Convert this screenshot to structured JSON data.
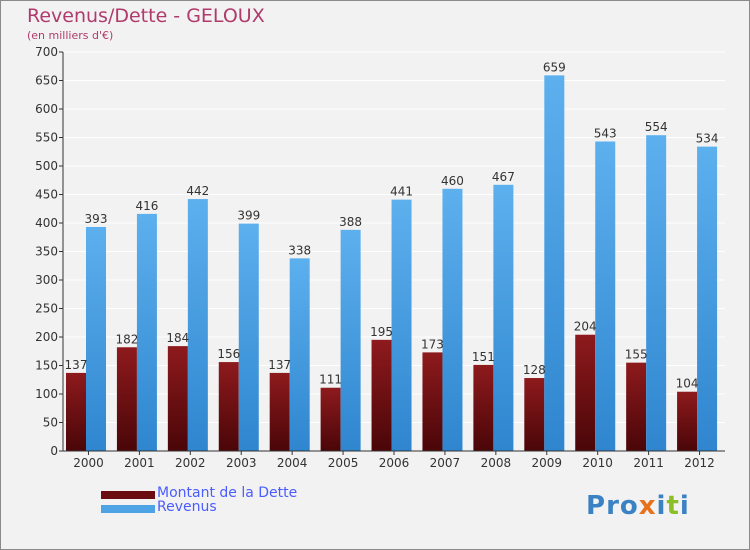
{
  "title": "Revenus/Dette - GELOUX",
  "subtitle": "(en milliers d'€)",
  "legend": {
    "debt_label": "Montant de la Dette",
    "revenue_label": "Revenus"
  },
  "logo": {
    "text": "Proxiti",
    "letters": [
      "P",
      "r",
      "o",
      "x",
      "i",
      "t",
      "i"
    ],
    "colors": [
      "#3b82c4",
      "#3b82c4",
      "#3b82c4",
      "#e8721c",
      "#3b82c4",
      "#8cbf26",
      "#3b82c4"
    ]
  },
  "colors": {
    "debt": "#7a0f12",
    "revenue": "#4ea3e4",
    "grid": "#ffffff",
    "axis": "#333333",
    "label": "#333333"
  },
  "chart_data": {
    "type": "bar",
    "title": "Revenus/Dette - GELOUX",
    "ylabel": "(en milliers d'€)",
    "xlabel": "",
    "categories": [
      "2000",
      "2001",
      "2002",
      "2003",
      "2004",
      "2005",
      "2006",
      "2007",
      "2008",
      "2009",
      "2010",
      "2011",
      "2012"
    ],
    "series": [
      {
        "name": "Montant de la Dette",
        "values": [
          137,
          182,
          184,
          156,
          137,
          111,
          195,
          173,
          151,
          128,
          204,
          155,
          104
        ]
      },
      {
        "name": "Revenus",
        "values": [
          393,
          416,
          442,
          399,
          338,
          388,
          441,
          460,
          467,
          659,
          543,
          554,
          534
        ]
      }
    ],
    "ylim": [
      0,
      700
    ],
    "yticks": [
      0,
      50,
      100,
      150,
      200,
      250,
      300,
      350,
      400,
      450,
      500,
      550,
      600,
      650,
      700
    ],
    "grid": true,
    "legend_position": "bottom-left"
  }
}
